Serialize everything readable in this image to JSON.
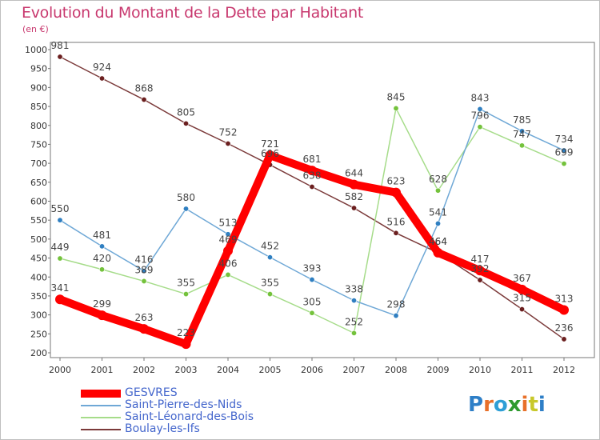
{
  "title": "Evolution du Montant de la Dette par Habitant",
  "unit": "(en €)",
  "logo": "Proxiti",
  "chart_data": {
    "type": "line",
    "x": [
      "2000",
      "2001",
      "2002",
      "2003",
      "2004",
      "2005",
      "2006",
      "2007",
      "2008",
      "2009",
      "2010",
      "2011",
      "2012"
    ],
    "ylim": [
      200,
      1000
    ],
    "yticks": [
      200,
      250,
      300,
      350,
      400,
      450,
      500,
      550,
      600,
      650,
      700,
      750,
      800,
      850,
      900,
      950,
      1000
    ],
    "grid": false,
    "legend_position": "bottom-left",
    "series": [
      {
        "name": "GESVRES",
        "color": "#ff0000",
        "emphasis": true,
        "values": [
          341,
          299,
          263,
          223,
          469,
          721,
          681,
          644,
          623,
          464,
          417,
          367,
          313
        ],
        "labels": [
          "341",
          "299",
          "263",
          "223",
          "469",
          "721",
          "681",
          "644",
          "623",
          "464",
          "417",
          "367",
          "313"
        ]
      },
      {
        "name": "Saint-Pierre-des-Nids",
        "color": "#6fa8d6",
        "point_color": "#2f7fc1",
        "values": [
          550,
          481,
          416,
          580,
          513,
          452,
          393,
          338,
          298,
          541,
          843,
          785,
          734
        ],
        "labels": [
          "550",
          "481",
          "416",
          "580",
          "513",
          "452",
          "393",
          "338",
          "298",
          "541",
          "843",
          "785",
          "734"
        ]
      },
      {
        "name": "Saint-Léonard-des-Bois",
        "color": "#a6dc8a",
        "point_color": "#74c23c",
        "values": [
          449,
          420,
          389,
          355,
          406,
          355,
          305,
          252,
          845,
          628,
          796,
          747,
          699
        ],
        "labels": [
          "449",
          "420",
          "389",
          "355",
          "406",
          "355",
          "305",
          "252",
          "845",
          "628",
          "796",
          "747",
          "699"
        ]
      },
      {
        "name": "Boulay-les-Ifs",
        "color": "#7b3a3a",
        "point_color": "#6b1f1f",
        "values": [
          981,
          924,
          868,
          805,
          752,
          696,
          638,
          582,
          516,
          464,
          392,
          315,
          236
        ],
        "labels": [
          "981",
          "924",
          "868",
          "805",
          "752",
          "696",
          "638",
          "582",
          "516",
          "464",
          "392",
          "315",
          "236"
        ]
      }
    ]
  }
}
